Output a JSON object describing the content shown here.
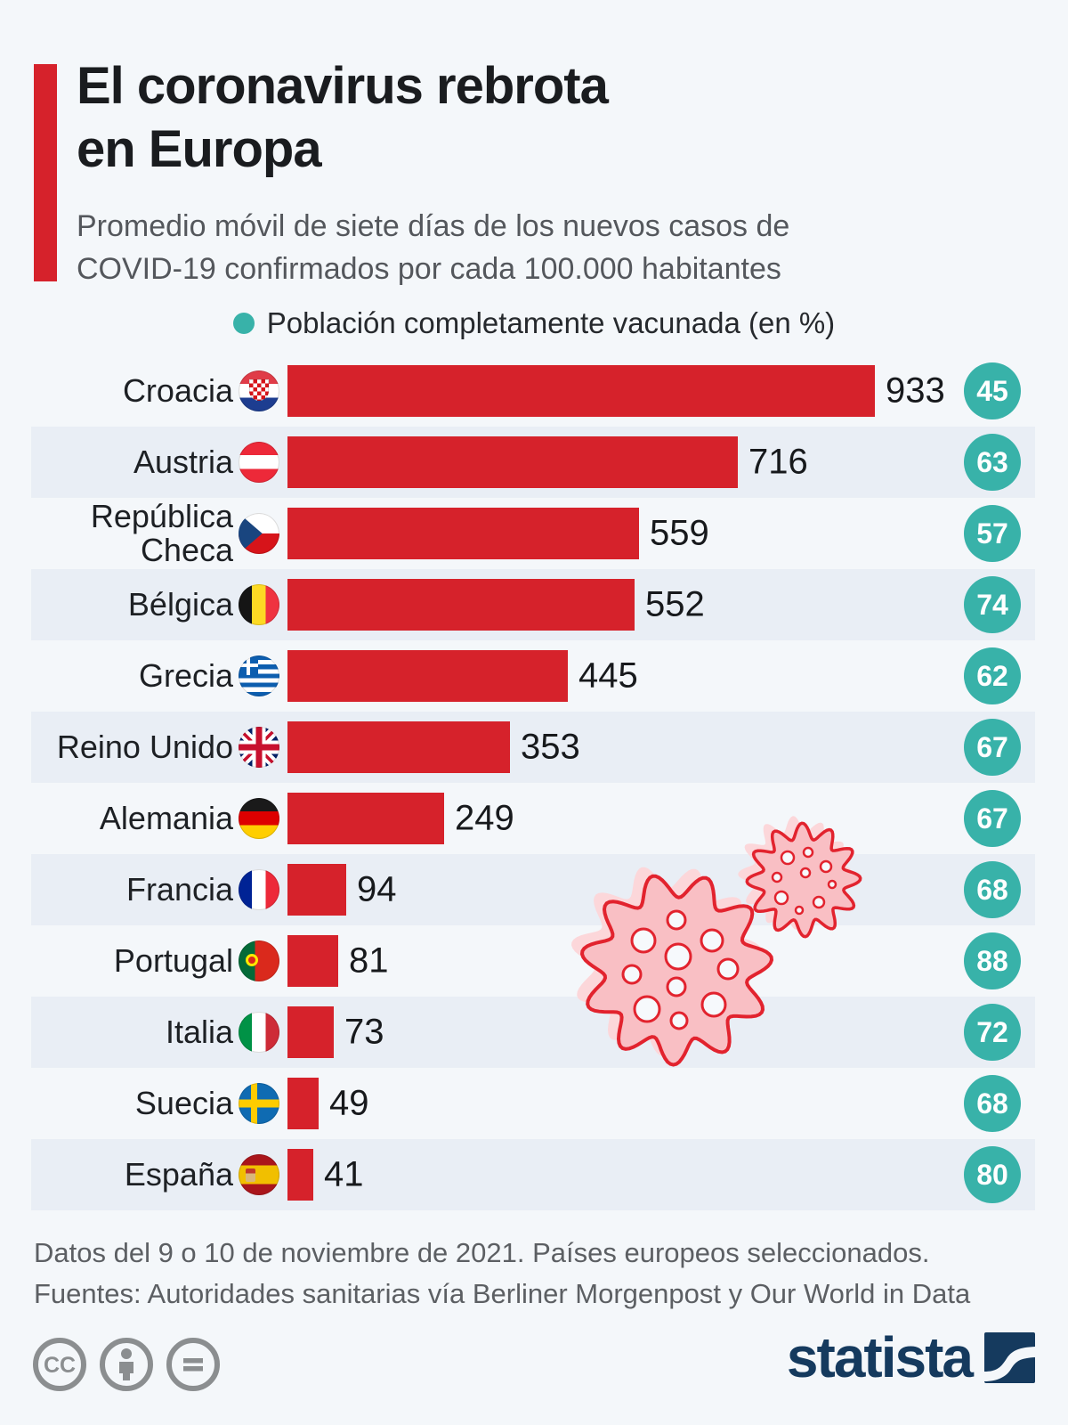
{
  "page": {
    "title": "El coronavirus rebrota\nen Europa",
    "subtitle": "Promedio móvil de siete días de los nuevos casos de\nCOVID-19 confirmados por cada 100.000 habitantes",
    "legend_label": "Población completamente vacunada (en %)",
    "footnote": "Datos del 9 o 10 de noviembre de 2021. Países europeos seleccionados.\nFuentes: Autoridades sanitarias vía Berliner Morgenpost y Our World in Data",
    "brand_name": "statista",
    "license_icons": [
      "cc-icon",
      "attribution-person-icon",
      "equals-icon"
    ]
  },
  "colors": {
    "background": "#f4f7fa",
    "row_band": "#e9eef5",
    "bar_red": "#d6222b",
    "accent_red": "#d6222b",
    "vaccinated_teal": "#38b2a9",
    "brand_navy": "#153a5e",
    "virus_pink": "#f9bfc4",
    "virus_outline": "#e2232e"
  },
  "chart_data": {
    "type": "bar",
    "orientation": "horizontal",
    "title": "El coronavirus rebrota en Europa",
    "subtitle": "Promedio móvil de siete días de los nuevos casos de COVID-19 confirmados por cada 100.000 habitantes",
    "categories": [
      "Croacia",
      "Austria",
      "República Checa",
      "Bélgica",
      "Grecia",
      "Reino Unido",
      "Alemania",
      "Francia",
      "Portugal",
      "Italia",
      "Suecia",
      "España"
    ],
    "flags": [
      "hr",
      "at",
      "cz",
      "be",
      "gr",
      "gb",
      "de",
      "fr",
      "pt",
      "it",
      "se",
      "es"
    ],
    "series": [
      {
        "name": "Promedio móvil de siete días de nuevos casos de COVID-19 por cada 100.000 habitantes",
        "values": [
          933,
          716,
          559,
          552,
          445,
          353,
          249,
          94,
          81,
          73,
          49,
          41
        ]
      },
      {
        "name": "Población completamente vacunada (en %)",
        "values": [
          45,
          63,
          57,
          74,
          62,
          67,
          67,
          68,
          88,
          72,
          68,
          80
        ]
      }
    ],
    "xlim": [
      0,
      933
    ],
    "value_labels": true,
    "grid": false,
    "legend_position": "top"
  }
}
